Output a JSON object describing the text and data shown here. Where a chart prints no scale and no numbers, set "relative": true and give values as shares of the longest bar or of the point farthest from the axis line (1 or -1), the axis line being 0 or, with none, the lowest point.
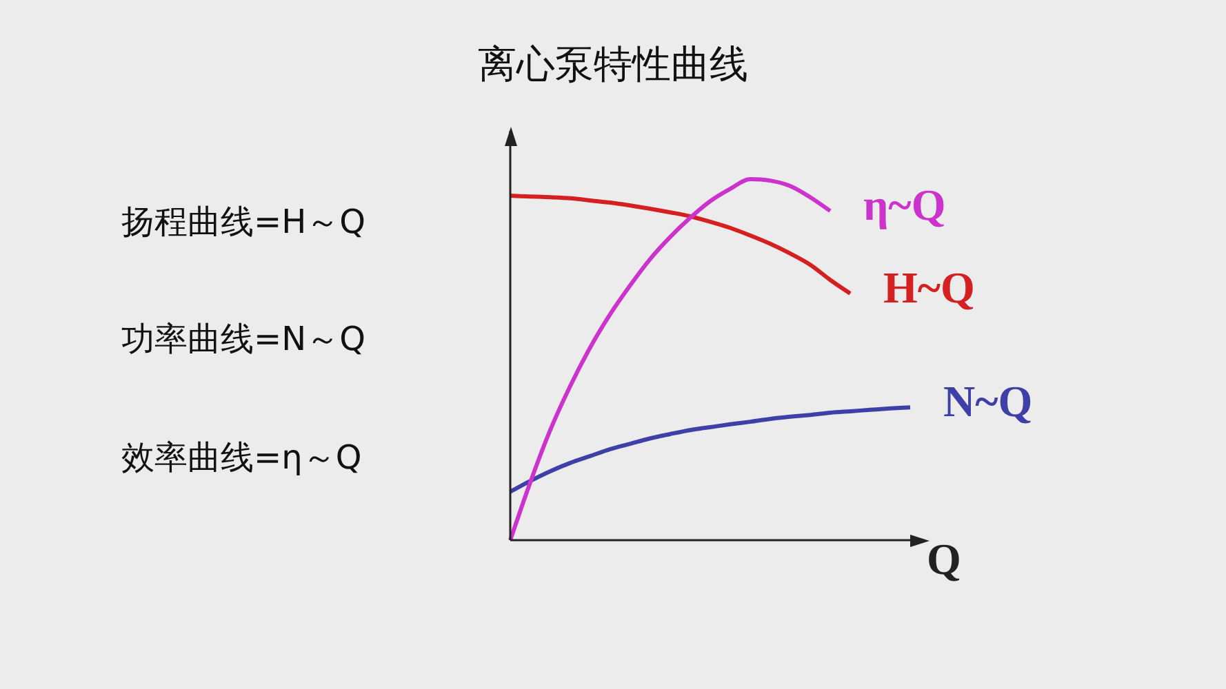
{
  "chart_data": {
    "type": "line",
    "title": "离心泵特性曲线",
    "xlabel": "Q",
    "relative": true,
    "tick_labels": false,
    "marker": "none",
    "categories": [
      null,
      null,
      null,
      null,
      null,
      null,
      null,
      null,
      null,
      null,
      null,
      null,
      null,
      null,
      null,
      null,
      null,
      null,
      null,
      null,
      null
    ],
    "annotations": [
      "扬程曲线=H～Q",
      "功率曲线=N～Q",
      "效率曲线=η～Q"
    ],
    "series": [
      {
        "name": "η~Q",
        "color": "#cc33cc",
        "values": [
          0,
          0.16,
          0.305,
          0.427,
          0.534,
          0.626,
          0.706,
          0.779,
          0.84,
          0.893,
          0.939,
          0.973,
          1,
          0.996,
          0.981,
          0.95,
          0.912,
          null,
          null,
          null,
          null
        ]
      },
      {
        "name": "H~Q",
        "color": "#d42020",
        "values": [
          0.954,
          0.952,
          0.95,
          0.947,
          0.941,
          0.935,
          0.927,
          0.918,
          0.908,
          0.897,
          0.882,
          0.865,
          0.844,
          0.821,
          0.794,
          0.763,
          0.721,
          0.683,
          null,
          null,
          null
        ]
      },
      {
        "name": "N~Q",
        "color": "#3f3fa8",
        "values": [
          0.134,
          0.164,
          0.191,
          0.214,
          0.233,
          0.252,
          0.267,
          0.282,
          0.294,
          0.305,
          0.313,
          0.321,
          0.328,
          0.336,
          0.342,
          0.347,
          0.353,
          0.357,
          0.361,
          0.365,
          0.368
        ]
      }
    ]
  }
}
